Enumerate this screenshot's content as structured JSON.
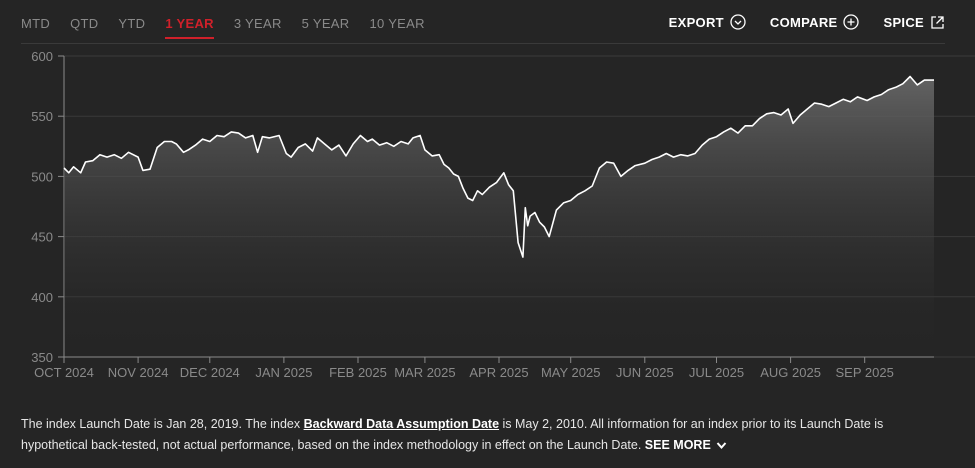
{
  "tabs": [
    {
      "label": "MTD",
      "active": false
    },
    {
      "label": "QTD",
      "active": false
    },
    {
      "label": "YTD",
      "active": false
    },
    {
      "label": "1 YEAR",
      "active": true
    },
    {
      "label": "3 YEAR",
      "active": false
    },
    {
      "label": "5 YEAR",
      "active": false
    },
    {
      "label": "10 YEAR",
      "active": false
    }
  ],
  "actions": {
    "export_label": "EXPORT",
    "compare_label": "COMPARE",
    "spice_label": "SPICE"
  },
  "footnote": {
    "text_before": "The index Launch Date is Jan 28, 2019. The index ",
    "link_text": "Backward Data Assumption Date",
    "text_after": " is May 2, 2010. All information for an index prior to its Launch Date is hypothetical back-tested, not actual performance, based on the index methodology in effect on the Launch Date. ",
    "see_more": "SEE MORE"
  },
  "colors": {
    "background": "#252525",
    "accent": "#d0202a",
    "line": "#ffffff",
    "muted_text": "#8a8a8a"
  },
  "chart_data": {
    "type": "area",
    "title": "",
    "xlabel": "",
    "ylabel": "",
    "ylim": [
      350,
      600
    ],
    "yticks": [
      350,
      400,
      450,
      500,
      550,
      600
    ],
    "xlim": [
      "2024-10-01",
      "2025-09-30"
    ],
    "xtick_labels": [
      "OCT 2024",
      "NOV 2024",
      "DEC 2024",
      "JAN 2025",
      "FEB 2025",
      "MAR 2025",
      "APR 2025",
      "MAY 2025",
      "JUN 2025",
      "JUL 2025",
      "AUG 2025",
      "SEP 2025"
    ],
    "xtick_dates": [
      "2024-10-01",
      "2024-11-01",
      "2024-12-01",
      "2025-01-01",
      "2025-02-01",
      "2025-03-01",
      "2025-04-01",
      "2025-05-01",
      "2025-06-01",
      "2025-07-01",
      "2025-08-01",
      "2025-09-01"
    ],
    "grid": true,
    "series": [
      {
        "points": [
          [
            "2024-10-01",
            507
          ],
          [
            "2024-10-03",
            503
          ],
          [
            "2024-10-05",
            508
          ],
          [
            "2024-10-08",
            503
          ],
          [
            "2024-10-10",
            512
          ],
          [
            "2024-10-13",
            513
          ],
          [
            "2024-10-16",
            518
          ],
          [
            "2024-10-19",
            516
          ],
          [
            "2024-10-22",
            518
          ],
          [
            "2024-10-25",
            515
          ],
          [
            "2024-10-28",
            520
          ],
          [
            "2024-11-01",
            516
          ],
          [
            "2024-11-03",
            505
          ],
          [
            "2024-11-06",
            506
          ],
          [
            "2024-11-09",
            524
          ],
          [
            "2024-11-12",
            529
          ],
          [
            "2024-11-15",
            529
          ],
          [
            "2024-11-17",
            527
          ],
          [
            "2024-11-20",
            520
          ],
          [
            "2024-11-22",
            522
          ],
          [
            "2024-11-25",
            526
          ],
          [
            "2024-11-28",
            531
          ],
          [
            "2024-12-01",
            529
          ],
          [
            "2024-12-04",
            534
          ],
          [
            "2024-12-07",
            533
          ],
          [
            "2024-12-10",
            537
          ],
          [
            "2024-12-13",
            536
          ],
          [
            "2024-12-16",
            532
          ],
          [
            "2024-12-19",
            534
          ],
          [
            "2024-12-21",
            520
          ],
          [
            "2024-12-23",
            533
          ],
          [
            "2024-12-26",
            532
          ],
          [
            "2024-12-30",
            534
          ],
          [
            "2025-01-02",
            519
          ],
          [
            "2025-01-04",
            516
          ],
          [
            "2025-01-07",
            524
          ],
          [
            "2025-01-10",
            527
          ],
          [
            "2025-01-13",
            521
          ],
          [
            "2025-01-15",
            532
          ],
          [
            "2025-01-18",
            527
          ],
          [
            "2025-01-21",
            522
          ],
          [
            "2025-01-24",
            526
          ],
          [
            "2025-01-27",
            517
          ],
          [
            "2025-01-30",
            527
          ],
          [
            "2025-02-02",
            534
          ],
          [
            "2025-02-05",
            529
          ],
          [
            "2025-02-07",
            531
          ],
          [
            "2025-02-10",
            526
          ],
          [
            "2025-02-13",
            528
          ],
          [
            "2025-02-16",
            525
          ],
          [
            "2025-02-19",
            529
          ],
          [
            "2025-02-22",
            527
          ],
          [
            "2025-02-24",
            532
          ],
          [
            "2025-02-27",
            534
          ],
          [
            "2025-03-01",
            522
          ],
          [
            "2025-03-04",
            517
          ],
          [
            "2025-03-07",
            518
          ],
          [
            "2025-03-09",
            510
          ],
          [
            "2025-03-11",
            507
          ],
          [
            "2025-03-13",
            502
          ],
          [
            "2025-03-15",
            500
          ],
          [
            "2025-03-17",
            490
          ],
          [
            "2025-03-19",
            482
          ],
          [
            "2025-03-21",
            480
          ],
          [
            "2025-03-23",
            488
          ],
          [
            "2025-03-25",
            485
          ],
          [
            "2025-03-28",
            491
          ],
          [
            "2025-03-31",
            495
          ],
          [
            "2025-04-03",
            503
          ],
          [
            "2025-04-05",
            493
          ],
          [
            "2025-04-07",
            488
          ],
          [
            "2025-04-09",
            445
          ],
          [
            "2025-04-11",
            433
          ],
          [
            "2025-04-12",
            474
          ],
          [
            "2025-04-13",
            459
          ],
          [
            "2025-04-14",
            467
          ],
          [
            "2025-04-16",
            470
          ],
          [
            "2025-04-18",
            462
          ],
          [
            "2025-04-20",
            458
          ],
          [
            "2025-04-22",
            450
          ],
          [
            "2025-04-25",
            472
          ],
          [
            "2025-04-28",
            478
          ],
          [
            "2025-05-01",
            480
          ],
          [
            "2025-05-04",
            485
          ],
          [
            "2025-05-07",
            488
          ],
          [
            "2025-05-10",
            492
          ],
          [
            "2025-05-13",
            507
          ],
          [
            "2025-05-16",
            512
          ],
          [
            "2025-05-19",
            511
          ],
          [
            "2025-05-22",
            500
          ],
          [
            "2025-05-25",
            505
          ],
          [
            "2025-05-28",
            509
          ],
          [
            "2025-06-01",
            511
          ],
          [
            "2025-06-04",
            514
          ],
          [
            "2025-06-07",
            516
          ],
          [
            "2025-06-10",
            519
          ],
          [
            "2025-06-13",
            516
          ],
          [
            "2025-06-16",
            518
          ],
          [
            "2025-06-19",
            517
          ],
          [
            "2025-06-22",
            519
          ],
          [
            "2025-06-25",
            526
          ],
          [
            "2025-06-28",
            531
          ],
          [
            "2025-07-01",
            533
          ],
          [
            "2025-07-04",
            537
          ],
          [
            "2025-07-07",
            540
          ],
          [
            "2025-07-10",
            536
          ],
          [
            "2025-07-13",
            542
          ],
          [
            "2025-07-16",
            542
          ],
          [
            "2025-07-19",
            548
          ],
          [
            "2025-07-22",
            552
          ],
          [
            "2025-07-25",
            553
          ],
          [
            "2025-07-28",
            551
          ],
          [
            "2025-07-31",
            556
          ],
          [
            "2025-08-02",
            544
          ],
          [
            "2025-08-05",
            551
          ],
          [
            "2025-08-08",
            556
          ],
          [
            "2025-08-11",
            561
          ],
          [
            "2025-08-14",
            560
          ],
          [
            "2025-08-17",
            558
          ],
          [
            "2025-08-20",
            561
          ],
          [
            "2025-08-23",
            564
          ],
          [
            "2025-08-26",
            562
          ],
          [
            "2025-08-29",
            566
          ],
          [
            "2025-09-02",
            563
          ],
          [
            "2025-09-05",
            566
          ],
          [
            "2025-09-08",
            568
          ],
          [
            "2025-09-11",
            572
          ],
          [
            "2025-09-14",
            574
          ],
          [
            "2025-09-17",
            577
          ],
          [
            "2025-09-20",
            583
          ],
          [
            "2025-09-23",
            576
          ],
          [
            "2025-09-26",
            580
          ],
          [
            "2025-09-30",
            580
          ]
        ]
      }
    ]
  }
}
